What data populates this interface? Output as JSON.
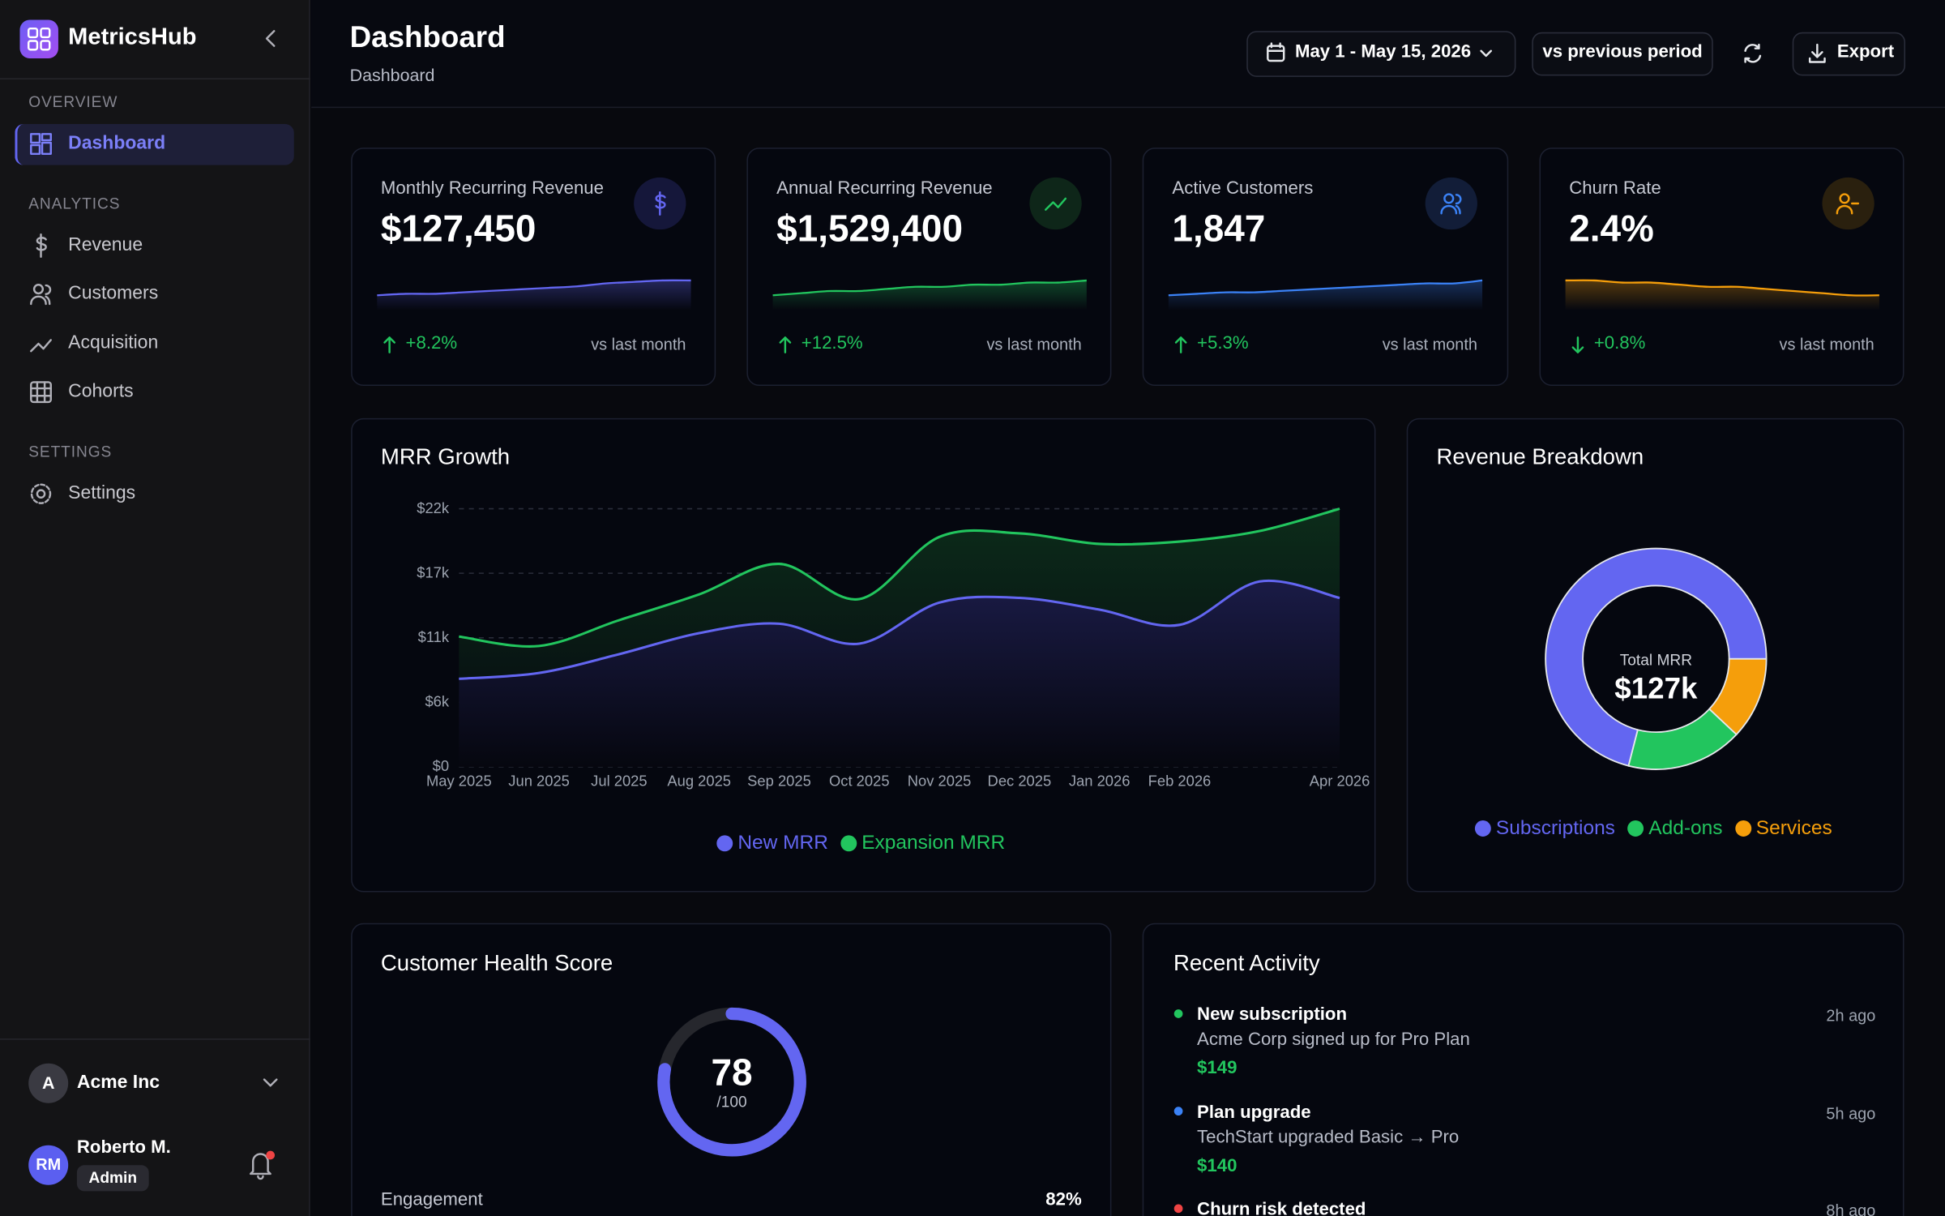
{
  "sidebar": {
    "brand": "MetricsHub",
    "sections": [
      {
        "title": "OVERVIEW",
        "items": [
          "Dashboard"
        ]
      },
      {
        "title": "ANALYTICS",
        "items": [
          "Revenue",
          "Customers",
          "Acquisition",
          "Cohorts"
        ]
      },
      {
        "title": "SETTINGS",
        "items": [
          "Settings"
        ]
      }
    ],
    "org": {
      "initial": "A",
      "name": "Acme Inc"
    },
    "user": {
      "initials": "RM",
      "name": "Roberto M.",
      "role": "Admin"
    }
  },
  "header": {
    "title": "Dashboard",
    "breadcrumb": "Dashboard",
    "date_range": "May 1 - May 15, 2026",
    "compare": "vs previous period",
    "export": "Export"
  },
  "kpis": [
    {
      "label": "Monthly Recurring Revenue",
      "value": "$127,450",
      "change": "+8.2%",
      "trend": "up",
      "note": "vs last month",
      "color": "#6366f1",
      "sparkline": [
        0,
        1,
        1,
        2,
        3,
        4,
        5,
        6,
        8,
        9,
        10,
        10
      ]
    },
    {
      "label": "Annual Recurring Revenue",
      "value": "$1,529,400",
      "change": "+12.5%",
      "trend": "up",
      "note": "vs last month",
      "color": "#22c55e",
      "sparkline": [
        0,
        1,
        2,
        2,
        3,
        4,
        4,
        5,
        5,
        6,
        6,
        7
      ]
    },
    {
      "label": "Active Customers",
      "value": "1,847",
      "change": "+5.3%",
      "trend": "up",
      "note": "vs last month",
      "color": "#3b82f6",
      "sparkline": [
        0,
        1,
        2,
        2,
        3,
        4,
        5,
        6,
        7,
        8,
        8,
        10
      ]
    },
    {
      "label": "Churn Rate",
      "value": "2.4%",
      "change": "+0.8%",
      "trend": "down",
      "note": "vs last month",
      "color": "#f59e0b",
      "sparkline": [
        10,
        10,
        9,
        9,
        8,
        7,
        7,
        6,
        5,
        4,
        3,
        3
      ]
    }
  ],
  "chart_data": [
    {
      "type": "line",
      "title": "MRR Growth",
      "categories": [
        "May 2025",
        "Jun 2025",
        "Jul 2025",
        "Aug 2025",
        "Sep 2025",
        "Oct 2025",
        "Nov 2025",
        "Dec 2025",
        "Jan 2026",
        "Feb 2026",
        null,
        "Apr 2026"
      ],
      "series": [
        {
          "name": "New MRR",
          "color": "#6366f1",
          "values": [
            7500,
            8000,
            9600,
            11400,
            12200,
            10500,
            14000,
            14400,
            13400,
            12100,
            15800,
            14400
          ]
        },
        {
          "name": "Expansion MRR",
          "color": "#22c55e",
          "values": [
            11100,
            10300,
            12500,
            14700,
            17300,
            14300,
            19600,
            19900,
            19000,
            19200,
            20100,
            22000
          ]
        }
      ],
      "ylim": [
        0,
        22000
      ],
      "yticks": [
        {
          "value": 0,
          "label": "$0"
        },
        {
          "value": 5500,
          "label": "$6k"
        },
        {
          "value": 11000,
          "label": "$11k"
        },
        {
          "value": 16500,
          "label": "$17k"
        },
        {
          "value": 22000,
          "label": "$22k"
        }
      ],
      "grid": true,
      "legend": "bottom"
    },
    {
      "type": "doughnut",
      "title": "Revenue Breakdown",
      "center_label": "Total MRR",
      "center_value": "$127k",
      "categories": [
        "Subscriptions",
        "Add-ons",
        "Services"
      ],
      "values": [
        71,
        17,
        12
      ],
      "colors": [
        "#6366f1",
        "#22c55e",
        "#f59e0b"
      ],
      "legend": "bottom"
    }
  ],
  "health": {
    "title": "Customer Health Score",
    "score": 78,
    "max": {
      "value": 100,
      "label": "/100"
    },
    "metrics": [
      {
        "name": "Engagement",
        "value": "82%"
      }
    ]
  },
  "activity": {
    "title": "Recent Activity",
    "items": [
      {
        "color": "#22c55e",
        "title": "New subscription",
        "description": "Acme Corp signed up for Pro Plan",
        "amount": "$149",
        "time": "2h ago"
      },
      {
        "color": "#3b82f6",
        "title": "Plan upgrade",
        "description": "TechStart upgraded Basic → Pro",
        "amount": "$140",
        "time": "5h ago"
      },
      {
        "color": "#ef4444",
        "title": "Churn risk detected",
        "time": "8h ago"
      }
    ]
  }
}
